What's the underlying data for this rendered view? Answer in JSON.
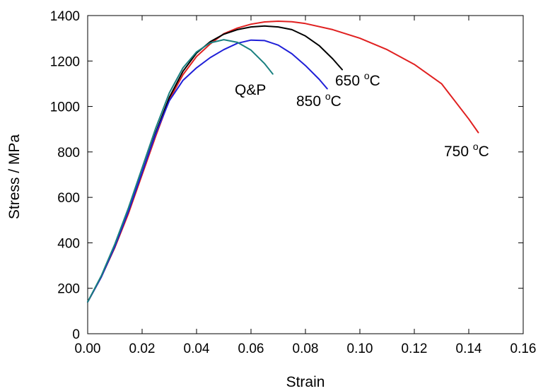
{
  "chart_data": {
    "type": "line",
    "title": "",
    "xlabel": "Strain",
    "ylabel": "Stress / MPa",
    "xlim": [
      0,
      0.16
    ],
    "ylim": [
      0,
      1400
    ],
    "x_ticks": [
      "0.00",
      "0.02",
      "0.04",
      "0.06",
      "0.08",
      "0.10",
      "0.12",
      "0.14",
      "0.16"
    ],
    "y_ticks": [
      "0",
      "200",
      "400",
      "600",
      "800",
      "1000",
      "1200",
      "1400"
    ],
    "grid": false,
    "legend": "none",
    "series": [
      {
        "name": "750 oC",
        "label_main": "750 ",
        "label_sup": "o",
        "label_tail": "C",
        "color": "#e02020",
        "points": [
          [
            0,
            140
          ],
          [
            0.005,
            250
          ],
          [
            0.01,
            380
          ],
          [
            0.015,
            530
          ],
          [
            0.02,
            700
          ],
          [
            0.025,
            870
          ],
          [
            0.03,
            1030
          ],
          [
            0.035,
            1140
          ],
          [
            0.04,
            1220
          ],
          [
            0.045,
            1275
          ],
          [
            0.05,
            1320
          ],
          [
            0.055,
            1345
          ],
          [
            0.06,
            1362
          ],
          [
            0.065,
            1372
          ],
          [
            0.07,
            1375
          ],
          [
            0.075,
            1373
          ],
          [
            0.08,
            1365
          ],
          [
            0.09,
            1338
          ],
          [
            0.1,
            1300
          ],
          [
            0.11,
            1250
          ],
          [
            0.12,
            1185
          ],
          [
            0.13,
            1100
          ],
          [
            0.14,
            945
          ],
          [
            0.1435,
            885
          ]
        ]
      },
      {
        "name": "650 oC",
        "label_main": "650 ",
        "label_sup": "o",
        "label_tail": "C",
        "color": "#000000",
        "points": [
          [
            0,
            140
          ],
          [
            0.005,
            250
          ],
          [
            0.01,
            385
          ],
          [
            0.015,
            540
          ],
          [
            0.02,
            710
          ],
          [
            0.025,
            885
          ],
          [
            0.03,
            1040
          ],
          [
            0.035,
            1155
          ],
          [
            0.04,
            1235
          ],
          [
            0.045,
            1285
          ],
          [
            0.05,
            1318
          ],
          [
            0.055,
            1338
          ],
          [
            0.06,
            1350
          ],
          [
            0.065,
            1354
          ],
          [
            0.07,
            1350
          ],
          [
            0.075,
            1338
          ],
          [
            0.08,
            1310
          ],
          [
            0.085,
            1268
          ],
          [
            0.09,
            1210
          ],
          [
            0.0935,
            1162
          ]
        ]
      },
      {
        "name": "850 oC",
        "label_main": "850 ",
        "label_sup": "o",
        "label_tail": "C",
        "color": "#1f1fd8",
        "points": [
          [
            0,
            140
          ],
          [
            0.005,
            250
          ],
          [
            0.01,
            385
          ],
          [
            0.015,
            540
          ],
          [
            0.02,
            710
          ],
          [
            0.025,
            880
          ],
          [
            0.03,
            1025
          ],
          [
            0.035,
            1115
          ],
          [
            0.04,
            1170
          ],
          [
            0.045,
            1215
          ],
          [
            0.05,
            1250
          ],
          [
            0.055,
            1278
          ],
          [
            0.06,
            1292
          ],
          [
            0.065,
            1290
          ],
          [
            0.07,
            1270
          ],
          [
            0.075,
            1232
          ],
          [
            0.08,
            1180
          ],
          [
            0.085,
            1120
          ],
          [
            0.088,
            1078
          ]
        ]
      },
      {
        "name": "Q&P",
        "label_main": "Q&P",
        "label_sup": "",
        "label_tail": "",
        "color": "#1a8080",
        "points": [
          [
            0,
            140
          ],
          [
            0.005,
            255
          ],
          [
            0.01,
            395
          ],
          [
            0.015,
            555
          ],
          [
            0.02,
            730
          ],
          [
            0.025,
            905
          ],
          [
            0.03,
            1060
          ],
          [
            0.035,
            1170
          ],
          [
            0.04,
            1240
          ],
          [
            0.045,
            1280
          ],
          [
            0.05,
            1294
          ],
          [
            0.055,
            1282
          ],
          [
            0.06,
            1248
          ],
          [
            0.065,
            1188
          ],
          [
            0.068,
            1143
          ]
        ]
      }
    ]
  }
}
